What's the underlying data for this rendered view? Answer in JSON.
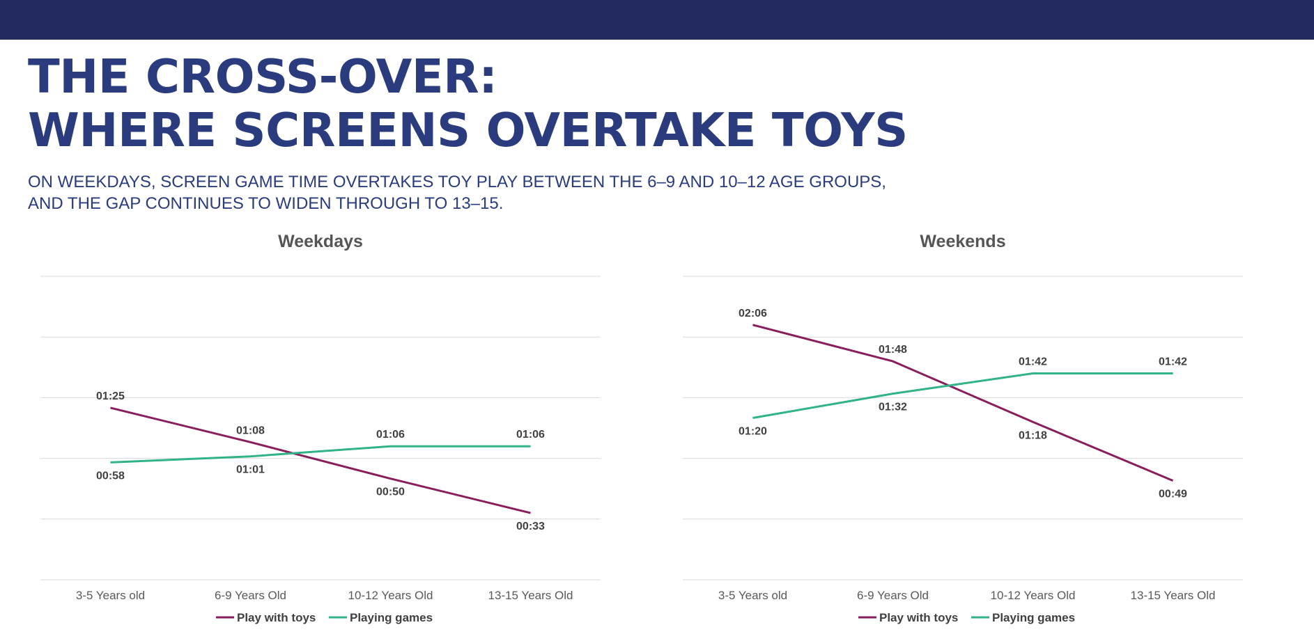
{
  "header": {
    "title_line1": "THE CROSS-OVER:",
    "title_line2": "WHERE SCREENS OVERTAKE TOYS",
    "subtitle_line1": "ON WEEKDAYS, SCREEN GAME TIME OVERTAKES TOY PLAY BETWEEN THE 6–9 AND 10–12 AGE GROUPS,",
    "subtitle_line2": "AND THE GAP CONTINUES TO WIDEN THROUGH TO 13–15."
  },
  "colors": {
    "bar": "#232a60",
    "title": "#2a3c7e",
    "toys": "#8a1e5c",
    "games": "#2fb387"
  },
  "chart_data": [
    {
      "type": "line",
      "title": "Weekdays",
      "categories": [
        "3-5 Years old",
        "6-9 Years Old",
        "10-12 Years Old",
        "13-15 Years Old"
      ],
      "series": [
        {
          "name": "Play with toys",
          "values": [
            85,
            68,
            50,
            33
          ],
          "labels": [
            "01:25",
            "01:08",
            "00:50",
            "00:33"
          ]
        },
        {
          "name": "Playing games",
          "values": [
            58,
            61,
            66,
            66
          ],
          "labels": [
            "00:58",
            "01:01",
            "01:06",
            "01:06"
          ]
        }
      ],
      "ylim": [
        0,
        150
      ],
      "gridlines": [
        0,
        30,
        60,
        90,
        120,
        150
      ],
      "grid": true,
      "legend": "bottom"
    },
    {
      "type": "line",
      "title": "Weekends",
      "categories": [
        "3-5 Years old",
        "6-9 Years Old",
        "10-12 Years Old",
        "13-15 Years Old"
      ],
      "series": [
        {
          "name": "Play with toys",
          "values": [
            126,
            108,
            78,
            49
          ],
          "labels": [
            "02:06",
            "01:48",
            "01:18",
            "00:49"
          ]
        },
        {
          "name": "Playing games",
          "values": [
            80,
            92,
            102,
            102
          ],
          "labels": [
            "01:20",
            "01:32",
            "01:42",
            "01:42"
          ]
        }
      ],
      "ylim": [
        0,
        150
      ],
      "gridlines": [
        0,
        30,
        60,
        90,
        120,
        150
      ],
      "grid": true,
      "legend": "bottom"
    }
  ]
}
